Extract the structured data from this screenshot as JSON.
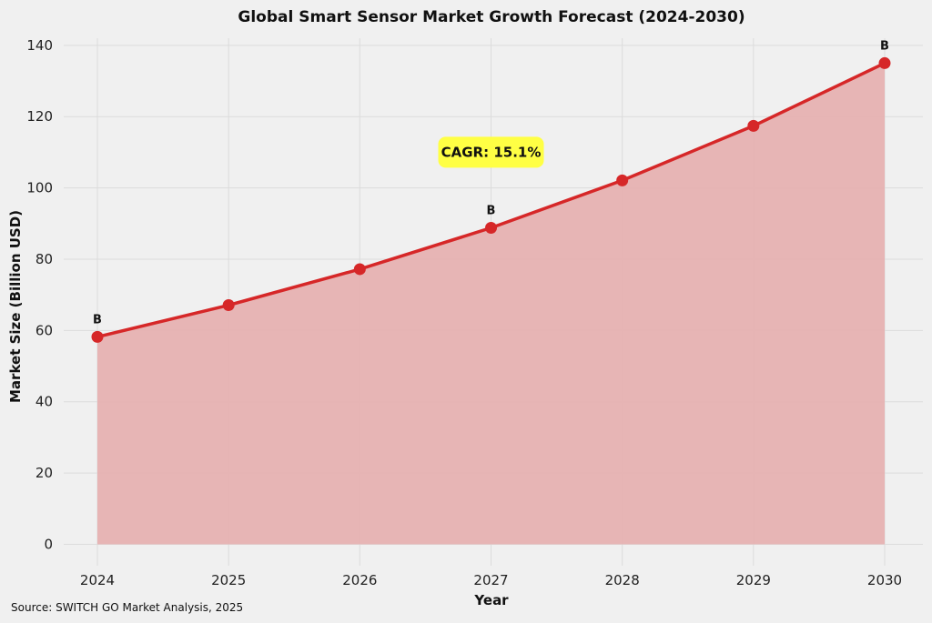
{
  "chart_data": {
    "type": "area",
    "title": "Global Smart Sensor Market Growth Forecast (2024-2030)",
    "xlabel": "Year",
    "ylabel": "Market Size (Billion USD)",
    "x": [
      2024,
      2025,
      2026,
      2027,
      2028,
      2029,
      2030
    ],
    "values": [
      58.2,
      67.1,
      77.2,
      88.8,
      102.1,
      117.4,
      135.0
    ],
    "ylim": [
      -6,
      142
    ],
    "yticks": [
      0,
      20,
      40,
      60,
      80,
      100,
      120,
      140
    ],
    "grid": true,
    "point_labels": [
      {
        "x": 2024,
        "text": "B"
      },
      {
        "x": 2027,
        "text": "B"
      },
      {
        "x": 2030,
        "text": "B"
      }
    ],
    "annotation": {
      "text": "CAGR: 15.1%",
      "x": 2027,
      "y": 110
    },
    "colors": {
      "line": "#d62728",
      "fill": "#e6b1b1",
      "annotation_bg": "#ffff44",
      "grid": "#dcdcdc"
    }
  },
  "source": "Source: SWITCH GO Market Analysis, 2025"
}
